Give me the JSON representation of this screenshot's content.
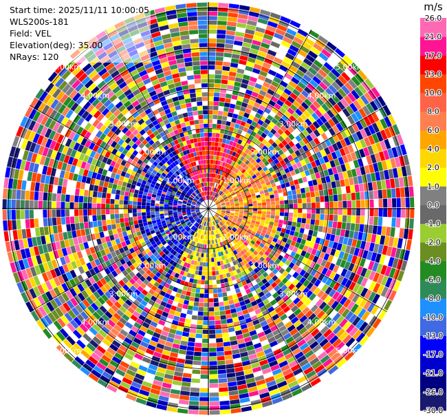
{
  "info": {
    "start_time": "Start time: 2025/11/11 10:00:05",
    "station": "WLS200s-181",
    "field": "Field: VEL",
    "elevation": "Elevation(deg): 35.00",
    "nrays": "NRays: 120"
  },
  "chart_data": {
    "type": "heatmap",
    "projection": "polar-ppi",
    "field": "VEL",
    "units": "m/s",
    "n_rays": 120,
    "elevation_deg": 35.0,
    "range_labels_km": [
      "1.00km",
      "2.00km",
      "3.00km",
      "4.00km",
      "5.00km"
    ],
    "colorbar": {
      "title": "m/s",
      "levels": [
        -30.0,
        -26.0,
        -21.0,
        -17.0,
        -13.0,
        -10.0,
        -8.0,
        -6.0,
        -4.0,
        -2.0,
        -1.0,
        0.0,
        1.0,
        2.0,
        4.0,
        6.0,
        8.0,
        10.0,
        13.0,
        17.0,
        21.0,
        26.0
      ],
      "tick_labels": [
        "-30.0",
        "-26.0",
        "-21.0",
        "-17.0",
        "-13.0",
        "-10.0",
        "-8.0",
        "-6.0",
        "-4.0",
        "-2.0",
        "-1.0",
        "0.0",
        "1.0",
        "2.0",
        "4.0",
        "6.0",
        "8.0",
        "10.0",
        "13.0",
        "17.0",
        "21.0",
        "26.0"
      ],
      "colors": [
        "#191970",
        "#000080",
        "#0000cd",
        "#0000ff",
        "#4169e1",
        "#1e90ff",
        "#2e8b57",
        "#228b22",
        "#6b8e23",
        "#9acd32",
        "#696969",
        "#808080",
        "#ffff00",
        "#ffd700",
        "#ffa500",
        "#ff7f50",
        "#ff6347",
        "#ff4500",
        "#ff0000",
        "#ff1493",
        "#ff69b4"
      ]
    }
  }
}
